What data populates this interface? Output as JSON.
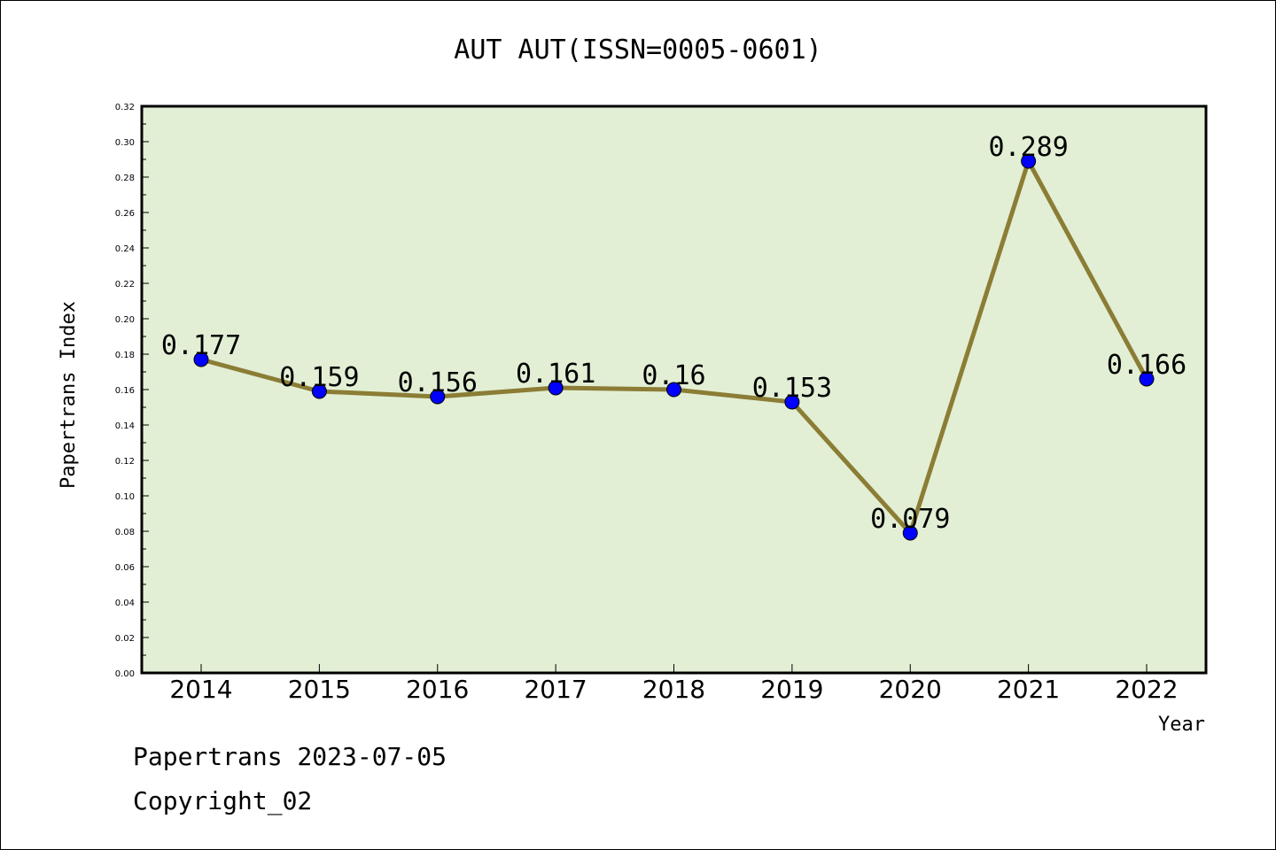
{
  "chart_data": {
    "type": "line",
    "title": "AUT AUT(ISSN=0005-0601)",
    "xlabel": "Year",
    "ylabel": "Papertrans Index",
    "categories": [
      "2014",
      "2015",
      "2016",
      "2017",
      "2018",
      "2019",
      "2020",
      "2021",
      "2022"
    ],
    "values": [
      0.177,
      0.159,
      0.156,
      0.161,
      0.16,
      0.153,
      0.079,
      0.289,
      0.166
    ],
    "value_labels": [
      "0.177",
      "0.159",
      "0.156",
      "0.161",
      "0.16",
      "0.153",
      "0.079",
      "0.289",
      "0.166"
    ],
    "ylim": [
      0,
      0.32
    ],
    "yticks": [
      "0.00",
      "0.02",
      "0.04",
      "0.06",
      "0.08",
      "0.10",
      "0.12",
      "0.14",
      "0.16",
      "0.18",
      "0.20",
      "0.22",
      "0.24",
      "0.26",
      "0.28",
      "0.30",
      "0.32"
    ],
    "grid": false,
    "legend": "none",
    "colors": {
      "plot_background": "#e2efd5",
      "line": "#8b7d35",
      "marker": "#0000ff"
    }
  },
  "footer": {
    "line1": "Papertrans 2023-07-05",
    "line2": "Copyright_02"
  }
}
